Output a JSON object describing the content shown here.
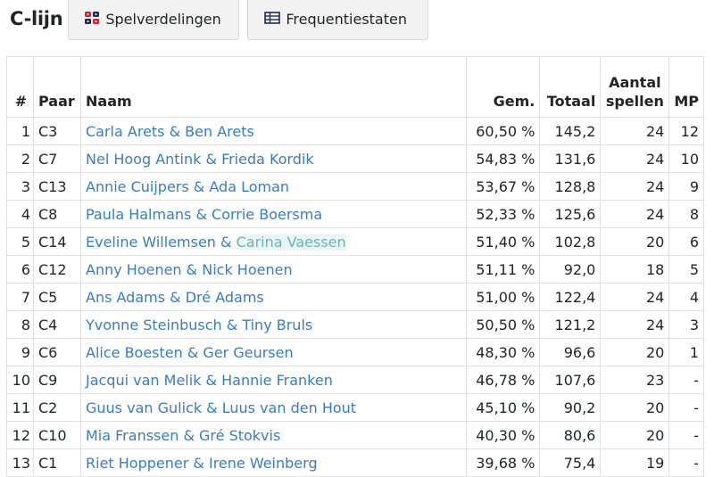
{
  "header": {
    "title": "C-lijn",
    "buttons": [
      {
        "label": "Spelverdelingen",
        "icon": "dice-icon"
      },
      {
        "label": "Frequentiestaten",
        "icon": "table-icon"
      }
    ]
  },
  "table": {
    "columns": {
      "rank": "#",
      "pair": "Paar",
      "name": "Naam",
      "avg": "Gem.",
      "total": "Totaal",
      "games_line1": "Aantal",
      "games_line2": "spellen",
      "mp": "MP"
    },
    "rows": [
      {
        "rank": "1",
        "pair": "C3",
        "p1": "Carla Arets",
        "p2": "Ben Arets",
        "avg": "60,50 %",
        "total": "145,2",
        "games": "24",
        "mp": "12"
      },
      {
        "rank": "2",
        "pair": "C7",
        "p1": "Nel Hoog Antink",
        "p2": "Frieda Kordik",
        "avg": "54,83 %",
        "total": "131,6",
        "games": "24",
        "mp": "10"
      },
      {
        "rank": "3",
        "pair": "C13",
        "p1": "Annie Cuijpers",
        "p2": "Ada Loman",
        "avg": "53,67 %",
        "total": "128,8",
        "games": "24",
        "mp": "9"
      },
      {
        "rank": "4",
        "pair": "C8",
        "p1": "Paula Halmans",
        "p2": "Corrie Boersma",
        "avg": "52,33 %",
        "total": "125,6",
        "games": "24",
        "mp": "8"
      },
      {
        "rank": "5",
        "pair": "C14",
        "p1": "Eveline Willemsen",
        "p2": "Carina Vaessen",
        "avg": "51,40 %",
        "total": "102,8",
        "games": "20",
        "mp": "6"
      },
      {
        "rank": "6",
        "pair": "C12",
        "p1": "Anny Hoenen",
        "p2": "Nick Hoenen",
        "avg": "51,11 %",
        "total": "92,0",
        "games": "18",
        "mp": "5"
      },
      {
        "rank": "7",
        "pair": "C5",
        "p1": "Ans Adams",
        "p2": "Dré Adams",
        "avg": "51,00 %",
        "total": "122,4",
        "games": "24",
        "mp": "4"
      },
      {
        "rank": "8",
        "pair": "C4",
        "p1": "Yvonne Steinbusch",
        "p2": "Tiny Bruls",
        "avg": "50,50 %",
        "total": "121,2",
        "games": "24",
        "mp": "3"
      },
      {
        "rank": "9",
        "pair": "C6",
        "p1": "Alice Boesten",
        "p2": "Ger Geursen",
        "avg": "48,30 %",
        "total": "96,6",
        "games": "20",
        "mp": "1"
      },
      {
        "rank": "10",
        "pair": "C9",
        "p1": "Jacqui van Melik",
        "p2": "Hannie Franken",
        "avg": "46,78 %",
        "total": "107,6",
        "games": "23",
        "mp": "-"
      },
      {
        "rank": "11",
        "pair": "C2",
        "p1": "Guus van Gulick",
        "p2": "Luus van den Hout",
        "avg": "45,10 %",
        "total": "90,2",
        "games": "20",
        "mp": "-"
      },
      {
        "rank": "12",
        "pair": "C10",
        "p1": "Mia Franssen",
        "p2": "Gré Stokvis",
        "avg": "40,30 %",
        "total": "80,6",
        "games": "20",
        "mp": "-"
      },
      {
        "rank": "13",
        "pair": "C1",
        "p1": "Riet Hoppener",
        "p2": "Irene Weinberg",
        "avg": "39,68 %",
        "total": "75,4",
        "games": "19",
        "mp": "-"
      }
    ],
    "separator": " & "
  },
  "colors": {
    "link": "#3a7cc4",
    "link_hover": "#6bb5ad",
    "dice_red": "#d0263a",
    "dice_dark": "#1f2d4e"
  }
}
